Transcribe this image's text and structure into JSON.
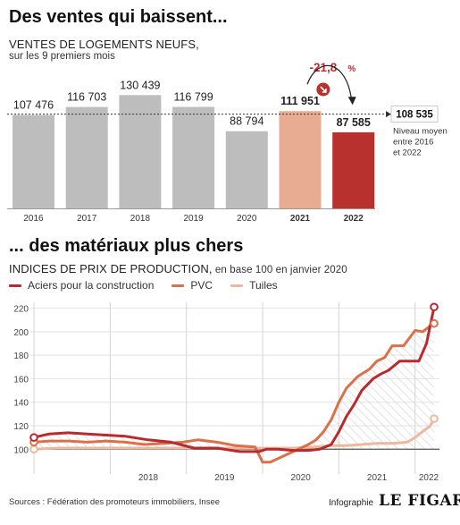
{
  "header1": "Des ventes qui baissent...",
  "sub1_title": "VENTES DE LOGEMENTS NEUFS,",
  "sub1_sub": "sur les 9 premiers mois",
  "header2": "... des matériaux plus chers",
  "sub2_title": "INDICES DE PRIX DE PRODUCTION,",
  "sub2_sub": " en base 100 en janvier 2020",
  "sources": "Sources : Fédération des promoteurs immobiliers, Insee",
  "credit": "Infographie",
  "brand": "LE FIGARO",
  "colors": {
    "bar_gray": "#bdbdbd",
    "bar_2021": "#e8ac93",
    "bar_2022": "#b8312f",
    "acier": "#b82a2e",
    "pvc": "#d9714a",
    "tuiles": "#ebb8a0",
    "hatch": "#d6d6d6"
  },
  "chart_data": [
    {
      "type": "bar",
      "categories": [
        "2016",
        "2017",
        "2018",
        "2019",
        "2020",
        "2021",
        "2022"
      ],
      "values": [
        107476,
        116703,
        130439,
        116799,
        88794,
        111951,
        87585
      ],
      "value_labels": [
        "107 476",
        "116 703",
        "130 439",
        "116 799",
        "88 794",
        "111 951",
        "87 585"
      ],
      "bold_categories": [
        "2021",
        "2022"
      ],
      "reference_line": {
        "value": 108535,
        "label": "108 535",
        "note": [
          "Niveau moyen",
          "entre 2016",
          "et 2022"
        ]
      },
      "change_annotation": {
        "value": "-21,8",
        "unit": "%"
      },
      "ylim": [
        0,
        140000
      ]
    },
    {
      "type": "line",
      "series": [
        {
          "name": "Aciers pour la construction",
          "key": "acier",
          "x": [
            2017.0,
            2017.2,
            2017.45,
            2017.7,
            2017.95,
            2018.2,
            2018.5,
            2018.8,
            2019.1,
            2019.4,
            2019.7,
            2019.95,
            2020.05,
            2020.2,
            2020.4,
            2020.6,
            2020.75,
            2020.9,
            2021.0,
            2021.1,
            2021.2,
            2021.3,
            2021.45,
            2021.55,
            2021.65,
            2021.8,
            2021.95,
            2022.05,
            2022.15,
            2022.25
          ],
          "y": [
            110,
            113,
            114,
            113,
            112,
            111,
            108,
            106,
            101,
            101,
            98,
            98,
            100,
            100,
            99,
            99,
            100,
            104,
            115,
            128,
            138,
            150,
            160,
            164,
            167,
            175,
            175,
            175,
            190,
            221
          ]
        },
        {
          "name": "PVC",
          "key": "pvc",
          "x": [
            2017.0,
            2017.2,
            2017.45,
            2017.7,
            2017.95,
            2018.2,
            2018.45,
            2018.7,
            2018.95,
            2019.15,
            2019.4,
            2019.65,
            2019.9,
            2020.0,
            2020.1,
            2020.3,
            2020.5,
            2020.6,
            2020.7,
            2020.8,
            2020.9,
            2021.0,
            2021.1,
            2021.25,
            2021.4,
            2021.5,
            2021.6,
            2021.7,
            2021.85,
            2022.0,
            2022.1,
            2022.2,
            2022.25
          ],
          "y": [
            106,
            107,
            107,
            106,
            107,
            106,
            104,
            105,
            106,
            108,
            106,
            103,
            102,
            89,
            89,
            95,
            101,
            104,
            108,
            115,
            125,
            140,
            152,
            162,
            168,
            175,
            178,
            188,
            188,
            201,
            200,
            205,
            207
          ]
        },
        {
          "name": "Tuiles",
          "key": "tuiles",
          "x": [
            2017.0,
            2017.3,
            2017.6,
            2017.9,
            2018.3,
            2018.7,
            2019.0,
            2019.3,
            2019.6,
            2019.9,
            2020.1,
            2020.4,
            2020.7,
            2020.9,
            2021.1,
            2021.3,
            2021.5,
            2021.7,
            2021.9,
            2022.0,
            2022.1,
            2022.2,
            2022.25
          ],
          "y": [
            100,
            101,
            101,
            101,
            101,
            101,
            101,
            101,
            101,
            101,
            101,
            101,
            102,
            103,
            103,
            104,
            105,
            105,
            106,
            110,
            115,
            120,
            126
          ]
        }
      ],
      "x_ticks": [
        "2018",
        "2019",
        "2020",
        "2021",
        "2022"
      ],
      "y_ticks": [
        100,
        120,
        140,
        160,
        180,
        200,
        220
      ],
      "ylim": [
        85,
        225
      ],
      "xlim": [
        2017.0,
        2022.32
      ],
      "baseline": 100,
      "grid": true
    }
  ]
}
